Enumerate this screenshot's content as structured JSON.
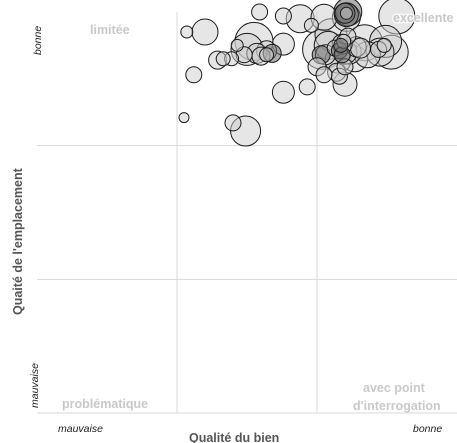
{
  "chart_data": {
    "type": "scatter",
    "title": "",
    "xlabel": "Qualité du bien",
    "ylabel": "Quaité de l'emplacement",
    "xlim": [
      0,
      3
    ],
    "ylim": [
      0,
      3
    ],
    "grid": true,
    "x_tick_labels": {
      "low": "mauvaise",
      "high": "bonne"
    },
    "y_tick_labels": {
      "low": "mauvaise",
      "high": "bonne"
    },
    "quadrant_labels": {
      "top_left": "limitée",
      "top_right": "excellente",
      "bottom_left": "problématique",
      "bottom_right_line1": "avec point",
      "bottom_right_line2": "d'interrogation"
    },
    "series": [
      {
        "points": [
          {
            "x": 1.64,
            "y": 2.71,
            "size": 10,
            "dark": false
          },
          {
            "x": 1.96,
            "y": 2.9,
            "size": 7,
            "dark": false
          },
          {
            "x": 2.04,
            "y": 2.72,
            "size": 20,
            "dark": false
          },
          {
            "x": 2.06,
            "y": 2.68,
            "size": 10,
            "dark": false
          },
          {
            "x": 2.08,
            "y": 2.75,
            "size": 14,
            "dark": false
          },
          {
            "x": 2.16,
            "y": 2.52,
            "size": 8,
            "dark": false
          },
          {
            "x": 2.1,
            "y": 2.83,
            "size": 16,
            "dark": false
          },
          {
            "x": 2.22,
            "y": 2.82,
            "size": 8,
            "dark": false
          },
          {
            "x": 2.19,
            "y": 2.78,
            "size": 7,
            "dark": false
          },
          {
            "x": 2.23,
            "y": 2.7,
            "size": 12,
            "dark": false
          },
          {
            "x": 2.2,
            "y": 2.59,
            "size": 8,
            "dark": false
          },
          {
            "x": 2.27,
            "y": 2.65,
            "size": 13,
            "dark": false
          },
          {
            "x": 2.28,
            "y": 2.74,
            "size": 10,
            "dark": false
          },
          {
            "x": 2.31,
            "y": 2.73,
            "size": 10,
            "dark": false
          },
          {
            "x": 2.34,
            "y": 2.77,
            "size": 18,
            "dark": false
          },
          {
            "x": 2.36,
            "y": 2.68,
            "size": 13,
            "dark": false
          },
          {
            "x": 2.21,
            "y": 2.96,
            "size": 14,
            "dark": false
          },
          {
            "x": 2.22,
            "y": 3.0,
            "size": 14,
            "dark": true
          },
          {
            "x": 2.21,
            "y": 2.98,
            "size": 12,
            "dark": true
          },
          {
            "x": 2.2,
            "y": 2.99,
            "size": 10,
            "dark": true
          },
          {
            "x": 2.21,
            "y": 2.99,
            "size": 6,
            "dark": false
          },
          {
            "x": 2.05,
            "y": 2.96,
            "size": 13,
            "dark": false
          },
          {
            "x": 2.15,
            "y": 2.64,
            "size": 13,
            "dark": false
          },
          {
            "x": 2.13,
            "y": 2.73,
            "size": 8,
            "dark": false
          },
          {
            "x": 2.17,
            "y": 2.75,
            "size": 7,
            "dark": true
          },
          {
            "x": 2.16,
            "y": 2.71,
            "size": 8,
            "dark": true
          },
          {
            "x": 2.18,
            "y": 2.68,
            "size": 8,
            "dark": true
          },
          {
            "x": 2.18,
            "y": 2.76,
            "size": 10,
            "dark": false
          },
          {
            "x": 2.2,
            "y": 2.7,
            "size": 12,
            "dark": false
          },
          {
            "x": 2.05,
            "y": 2.53,
            "size": 8,
            "dark": false
          },
          {
            "x": 2.03,
            "y": 2.68,
            "size": 9,
            "dark": true
          },
          {
            "x": 1.48,
            "y": 2.68,
            "size": 8,
            "dark": false
          },
          {
            "x": 1.5,
            "y": 2.72,
            "size": 16,
            "dark": false
          },
          {
            "x": 1.55,
            "y": 2.78,
            "size": 19,
            "dark": false
          },
          {
            "x": 1.6,
            "y": 2.67,
            "size": 9,
            "dark": false
          },
          {
            "x": 1.57,
            "y": 2.69,
            "size": 10,
            "dark": false
          },
          {
            "x": 1.64,
            "y": 2.68,
            "size": 7,
            "dark": false
          },
          {
            "x": 1.76,
            "y": 2.76,
            "size": 11,
            "dark": false
          },
          {
            "x": 1.68,
            "y": 2.69,
            "size": 9,
            "dark": true
          },
          {
            "x": 1.39,
            "y": 2.65,
            "size": 7,
            "dark": false
          },
          {
            "x": 1.43,
            "y": 2.75,
            "size": 6,
            "dark": false
          },
          {
            "x": 1.29,
            "y": 2.64,
            "size": 9,
            "dark": false
          },
          {
            "x": 1.2,
            "y": 2.85,
            "size": 13,
            "dark": false
          },
          {
            "x": 1.12,
            "y": 2.53,
            "size": 8,
            "dark": false
          },
          {
            "x": 1.07,
            "y": 2.85,
            "size": 6,
            "dark": false
          },
          {
            "x": 1.33,
            "y": 2.65,
            "size": 7,
            "dark": false
          },
          {
            "x": 1.59,
            "y": 3.0,
            "size": 8,
            "dark": false
          },
          {
            "x": 1.76,
            "y": 2.97,
            "size": 8,
            "dark": false
          },
          {
            "x": 1.88,
            "y": 2.95,
            "size": 14,
            "dark": false
          },
          {
            "x": 2.49,
            "y": 2.78,
            "size": 16,
            "dark": false
          },
          {
            "x": 2.45,
            "y": 2.7,
            "size": 14,
            "dark": false
          },
          {
            "x": 2.53,
            "y": 2.7,
            "size": 17,
            "dark": false
          },
          {
            "x": 2.57,
            "y": 2.97,
            "size": 18,
            "dark": false
          },
          {
            "x": 2.44,
            "y": 2.72,
            "size": 8,
            "dark": false
          },
          {
            "x": 2.48,
            "y": 2.75,
            "size": 7,
            "dark": false
          },
          {
            "x": 2.14,
            "y": 2.55,
            "size": 9,
            "dark": false
          },
          {
            "x": 2.0,
            "y": 2.59,
            "size": 9,
            "dark": false
          },
          {
            "x": 2.2,
            "y": 2.46,
            "size": 12,
            "dark": false
          },
          {
            "x": 1.93,
            "y": 2.44,
            "size": 8,
            "dark": false
          },
          {
            "x": 1.76,
            "y": 2.4,
            "size": 11,
            "dark": false
          },
          {
            "x": 1.05,
            "y": 2.21,
            "size": 5,
            "dark": false
          },
          {
            "x": 1.4,
            "y": 2.17,
            "size": 8,
            "dark": false
          },
          {
            "x": 1.49,
            "y": 2.11,
            "size": 15,
            "dark": false
          }
        ]
      }
    ]
  }
}
